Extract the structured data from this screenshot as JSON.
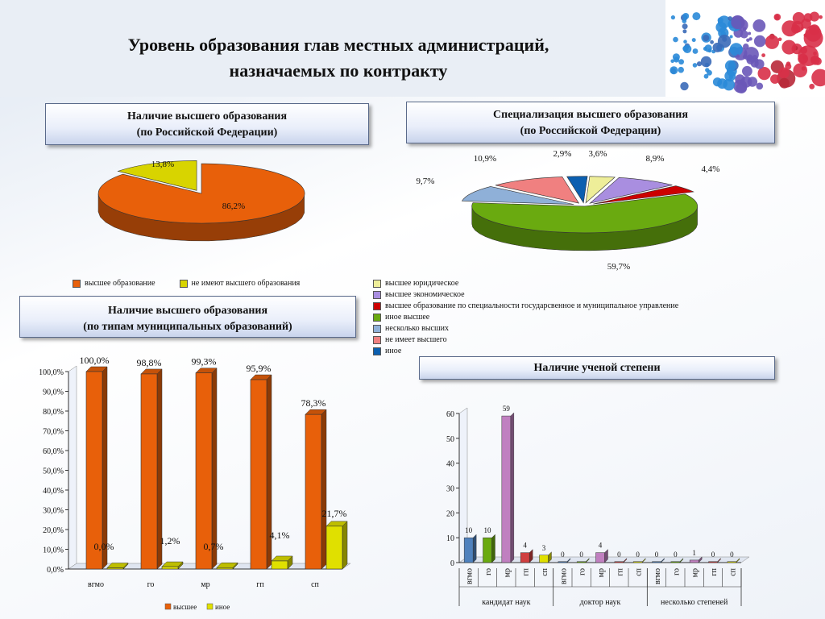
{
  "title": {
    "line1": "Уровень образования глав местных администраций,",
    "line2": "назначаемых по контракту"
  },
  "panels": {
    "pie1": {
      "line1": "Наличие высшего образования",
      "line2": "(по Российской Федерации)"
    },
    "pie2": {
      "line1": "Специализация высшего образования",
      "line2": "(по Российской Федерации)"
    },
    "bar1": {
      "line1": "Наличие высшего образования",
      "line2": "(по типам муниципальных образований)"
    },
    "bar2": {
      "line1": "Наличие ученой степени"
    }
  },
  "chart_data": [
    {
      "type": "pie",
      "categories": [
        "высшее образование",
        "не имеют высшего образования"
      ],
      "values": [
        86.2,
        13.8
      ],
      "labels": [
        "86,2%",
        "13,8%"
      ],
      "colors": [
        "#e8600a",
        "#d8d400"
      ],
      "legend": "bottom"
    },
    {
      "type": "pie",
      "categories": [
        "высшее юридическое",
        "высшее экономическое",
        "высшее образование по специальности государсвенное и муниципальное управление",
        "иное высшее",
        "несколько высших",
        "не имеет высшего",
        "иное"
      ],
      "values": [
        3.6,
        8.9,
        4.4,
        59.7,
        9.7,
        10.9,
        2.9
      ],
      "labels": [
        "3,6%",
        "8,9%",
        "4,4%",
        "59,7%",
        "9,7%",
        "10,9%",
        "2,9%"
      ],
      "colors": [
        "#eeee99",
        "#a98ee0",
        "#cc0000",
        "#6aaa10",
        "#8fb0d8",
        "#f08080",
        "#0b5fb0"
      ],
      "legend": "right"
    },
    {
      "type": "bar",
      "categories": [
        "вгмо",
        "го",
        "мр",
        "гп",
        "сп"
      ],
      "series": [
        {
          "name": "высшее",
          "values": [
            100.0,
            98.8,
            99.3,
            95.9,
            78.3
          ],
          "labels": [
            "100,0%",
            "98,8%",
            "99,3%",
            "95,9%",
            "78,3%"
          ],
          "color": "#e8600a"
        },
        {
          "name": "иное",
          "values": [
            0.0,
            1.2,
            0.7,
            4.1,
            21.7
          ],
          "labels": [
            "0,0%",
            "1,2%",
            "0,7%",
            "4,1%",
            "21,7%"
          ],
          "color": "#e0e000"
        }
      ],
      "yticks": [
        "0,0%",
        "10,0%",
        "20,0%",
        "30,0%",
        "40,0%",
        "50,0%",
        "60,0%",
        "70,0%",
        "80,0%",
        "90,0%",
        "100,0%"
      ],
      "ylim": [
        0,
        100
      ],
      "legend": "bottom"
    },
    {
      "type": "bar",
      "groups": [
        "кандидат наук",
        "доктор наук",
        "несколько степеней"
      ],
      "categories": [
        "вгмо",
        "го",
        "мр",
        "гп",
        "сп"
      ],
      "values": [
        [
          10,
          10,
          59,
          4,
          3
        ],
        [
          0,
          0,
          4,
          0,
          0
        ],
        [
          0,
          0,
          1,
          0,
          0
        ]
      ],
      "colors": [
        "#4f81bd",
        "#6aaa10",
        "#c080c0",
        "#d04040",
        "#e0e000"
      ],
      "yticks": [
        "0",
        "10",
        "20",
        "30",
        "40",
        "50",
        "60"
      ],
      "ylim": [
        0,
        60
      ]
    }
  ]
}
